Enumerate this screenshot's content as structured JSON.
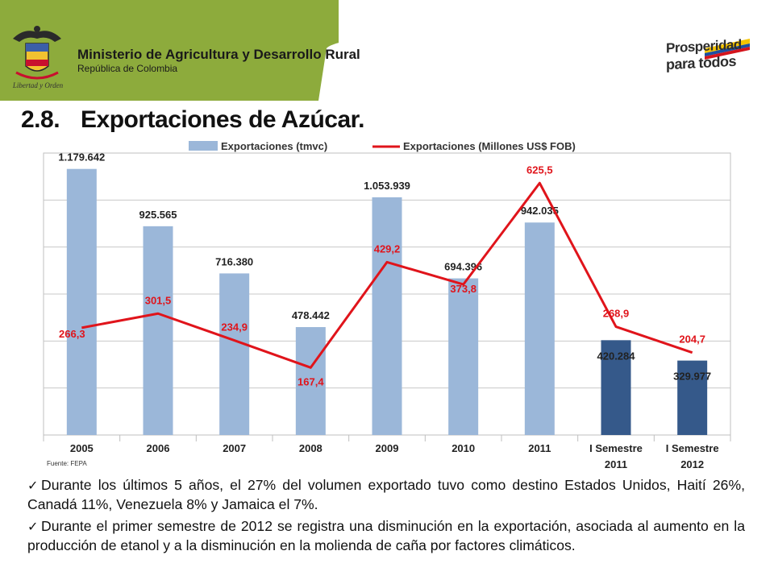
{
  "header": {
    "ministry": "Ministerio de Agricultura y Desarrollo Rural",
    "republic": "República de Colombia",
    "motto": "Libertad y Orden",
    "brand_line1": "Prosperidad",
    "brand_line2": "para todos",
    "band_color": "#8dab3c"
  },
  "section": {
    "number": "2.8.",
    "title": "Exportaciones de Azúcar."
  },
  "chart_data": {
    "type": "bar",
    "categories": [
      "2005",
      "2006",
      "2007",
      "2008",
      "2009",
      "2010",
      "2011",
      "I Semestre\n2011",
      "I Semestre\n2012"
    ],
    "series": [
      {
        "name": "Exportaciones (tmvc)",
        "type": "bar",
        "values": [
          1179642,
          925565,
          716380,
          478442,
          1053939,
          694396,
          942035,
          420284,
          329977
        ],
        "labels": [
          "1.179.642",
          "925.565",
          "716.380",
          "478.442",
          "1.053.939",
          "694.396",
          "942.035",
          "420.284",
          "329.977"
        ],
        "color": "#9bb7d9",
        "highlight_color": "#35598a",
        "highlight_indices": [
          7,
          8
        ]
      },
      {
        "name": "Exportaciones (Millones US$ FOB)",
        "type": "line",
        "values": [
          266.3,
          301.5,
          234.9,
          167.4,
          429.2,
          373.8,
          625.5,
          268.9,
          204.7
        ],
        "labels": [
          "266,3",
          "301,5",
          "234,9",
          "167,4",
          "429,2",
          "373,8",
          "625,5",
          "268,9",
          "204,7"
        ],
        "color": "#e0141b"
      }
    ],
    "ylim_bars": [
      0,
      1250000
    ],
    "ylim_line": [
      0,
      700
    ],
    "grid": true,
    "legend_position": "top",
    "source": "Fuente: FEPA"
  },
  "bullets": [
    "Durante los últimos 5 años, el 27% del volumen exportado tuvo como destino Estados Unidos, Haití 26%, Canadá 11%, Venezuela 8% y Jamaica el 7%.",
    "Durante el primer semestre de 2012 se registra una disminución en la exportación, asociada al aumento en la producción de etanol y a la disminución en la molienda de caña por factores climáticos."
  ]
}
